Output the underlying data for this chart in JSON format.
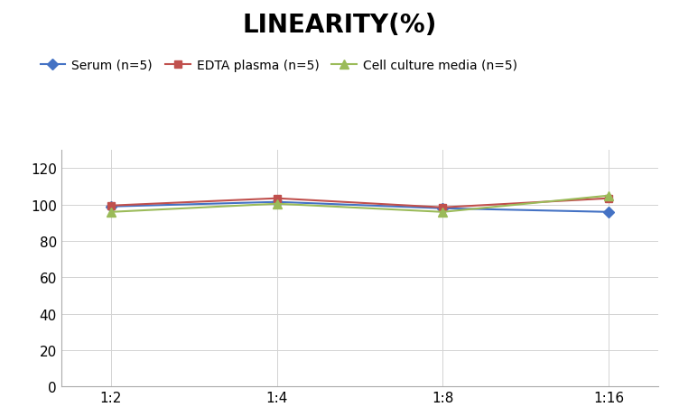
{
  "title": "LINEARITY(%)",
  "x_labels": [
    "1:2",
    "1:4",
    "1:8",
    "1:16"
  ],
  "series": [
    {
      "label": "Serum (n=5)",
      "values": [
        99.0,
        101.5,
        98.0,
        96.0
      ],
      "color": "#4472C4",
      "marker": "D",
      "marker_size": 6,
      "linewidth": 1.5
    },
    {
      "label": "EDTA plasma (n=5)",
      "values": [
        99.5,
        103.5,
        98.5,
        103.5
      ],
      "color": "#C0504D",
      "marker": "s",
      "marker_size": 6,
      "linewidth": 1.5
    },
    {
      "label": "Cell culture media (n=5)",
      "values": [
        96.0,
        100.5,
        96.0,
        105.0
      ],
      "color": "#9BBB59",
      "marker": "^",
      "marker_size": 7,
      "linewidth": 1.5
    }
  ],
  "ylim": [
    0,
    130
  ],
  "yticks": [
    0,
    20,
    40,
    60,
    80,
    100,
    120
  ],
  "background_color": "#FFFFFF",
  "grid_color": "#D3D3D3",
  "title_fontsize": 20,
  "tick_fontsize": 11,
  "legend_fontsize": 10
}
